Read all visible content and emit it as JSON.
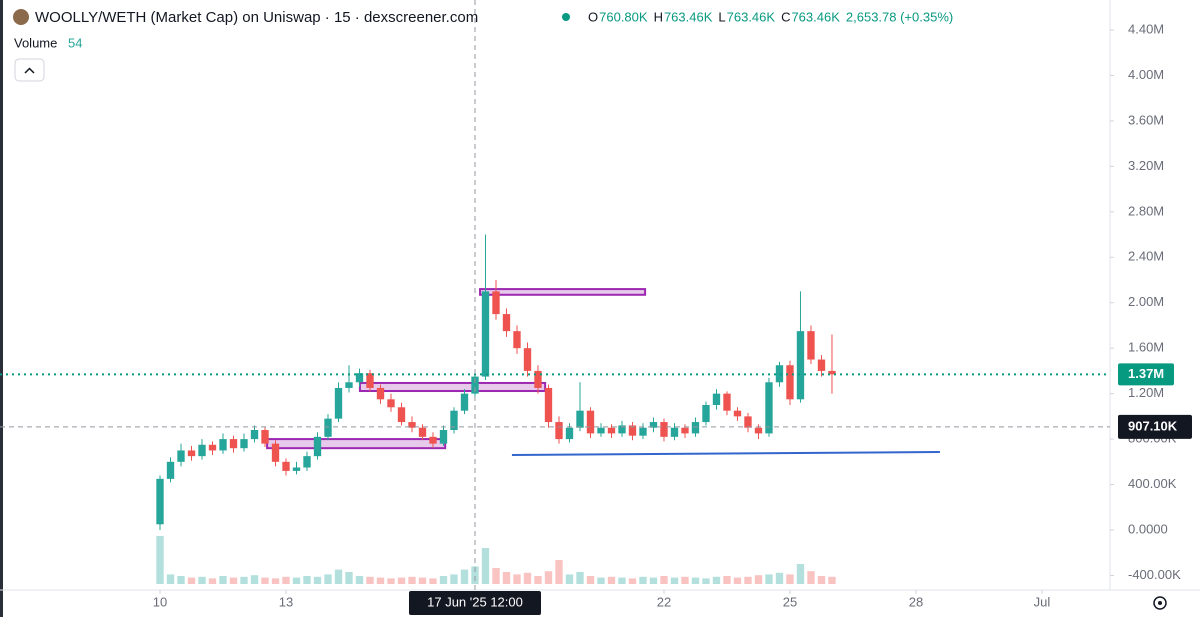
{
  "chart_data": {
    "type": "candlestick",
    "title": "WOOLLY/WETH (Market Cap) on Uniswap · 15 · dexscreener.com",
    "ohlc_header": [
      {
        "label": "O",
        "value": "760.80K"
      },
      {
        "label": "H",
        "value": "763.46K"
      },
      {
        "label": "L",
        "value": "763.46K"
      },
      {
        "label": "C",
        "value": "763.46K"
      }
    ],
    "change": "2,653.78 (+0.35%)",
    "volume_label": "Volume",
    "volume_value": "54",
    "up_color": "#26a69a",
    "down_color": "#ef5350",
    "x": [
      10,
      10.25,
      10.5,
      10.75,
      11,
      11.25,
      11.5,
      11.75,
      12,
      12.25,
      12.5,
      12.75,
      13,
      13.25,
      13.5,
      13.75,
      14,
      14.25,
      14.5,
      14.75,
      15,
      15.25,
      15.5,
      15.75,
      16,
      16.25,
      16.5,
      16.75,
      17,
      17.25,
      17.5,
      17.75,
      18,
      18.25,
      18.5,
      18.75,
      19,
      19.25,
      19.5,
      19.75,
      20,
      20.25,
      20.5,
      20.75,
      21,
      21.25,
      21.5,
      21.75,
      22,
      22.25,
      22.5,
      22.75,
      23,
      23.25,
      23.5,
      23.75,
      24,
      24.25,
      24.5,
      24.75,
      25,
      25.25,
      25.5,
      25.75,
      26
    ],
    "open": [
      50000,
      450000,
      600000,
      700000,
      650000,
      750000,
      700000,
      800000,
      720000,
      800000,
      880000,
      760000,
      600000,
      520000,
      550000,
      650000,
      820000,
      980000,
      1250000,
      1300000,
      1380000,
      1250000,
      1150000,
      1080000,
      950000,
      900000,
      820000,
      760000,
      880000,
      1050000,
      1200000,
      1350000,
      2100000,
      1900000,
      1750000,
      1600000,
      1400000,
      1250000,
      950000,
      800000,
      900000,
      1050000,
      850000,
      900000,
      850000,
      920000,
      830000,
      900000,
      950000,
      820000,
      900000,
      850000,
      950000,
      1100000,
      1200000,
      1050000,
      1000000,
      900000,
      850000,
      1300000,
      1450000,
      1150000,
      1750000,
      1500000,
      1400000
    ],
    "high": [
      480000,
      640000,
      760000,
      740000,
      800000,
      780000,
      850000,
      830000,
      850000,
      920000,
      910000,
      790000,
      630000,
      600000,
      690000,
      860000,
      1020000,
      1300000,
      1450000,
      1420000,
      1410000,
      1280000,
      1200000,
      1120000,
      1000000,
      930000,
      860000,
      920000,
      1080000,
      1240000,
      1400000,
      2600000,
      2200000,
      1950000,
      1800000,
      1650000,
      1450000,
      1280000,
      1000000,
      940000,
      1300000,
      1080000,
      940000,
      930000,
      960000,
      950000,
      940000,
      990000,
      980000,
      940000,
      930000,
      990000,
      1130000,
      1240000,
      1220000,
      1080000,
      1030000,
      930000,
      1340000,
      1480000,
      1490000,
      2100000,
      1800000,
      1540000,
      1720000
    ],
    "low": [
      0,
      420000,
      560000,
      610000,
      620000,
      660000,
      670000,
      680000,
      690000,
      770000,
      730000,
      560000,
      480000,
      490000,
      520000,
      620000,
      790000,
      950000,
      1210000,
      1260000,
      1220000,
      1110000,
      1040000,
      920000,
      860000,
      790000,
      720000,
      740000,
      850000,
      1020000,
      1170000,
      1320000,
      1850000,
      1700000,
      1550000,
      1350000,
      1200000,
      900000,
      760000,
      770000,
      870000,
      810000,
      820000,
      810000,
      820000,
      790000,
      800000,
      860000,
      780000,
      790000,
      810000,
      820000,
      920000,
      1060000,
      1010000,
      960000,
      860000,
      800000,
      820000,
      1260000,
      1100000,
      1120000,
      1460000,
      1350000,
      1200000
    ],
    "close": [
      450000,
      600000,
      700000,
      650000,
      750000,
      700000,
      800000,
      720000,
      800000,
      880000,
      760000,
      600000,
      520000,
      550000,
      650000,
      820000,
      980000,
      1250000,
      1300000,
      1380000,
      1250000,
      1150000,
      1080000,
      950000,
      900000,
      820000,
      760000,
      880000,
      1050000,
      1200000,
      1350000,
      2100000,
      1900000,
      1750000,
      1600000,
      1400000,
      1250000,
      950000,
      800000,
      900000,
      1050000,
      850000,
      900000,
      850000,
      920000,
      830000,
      900000,
      950000,
      820000,
      900000,
      850000,
      950000,
      1100000,
      1200000,
      1050000,
      1000000,
      900000,
      850000,
      1300000,
      1450000,
      1150000,
      1750000,
      1500000,
      1400000,
      1370000
    ],
    "volume": [
      60,
      12,
      10,
      8,
      9,
      7,
      10,
      8,
      9,
      11,
      8,
      7,
      9,
      8,
      10,
      9,
      12,
      18,
      15,
      10,
      9,
      8,
      7,
      8,
      9,
      8,
      7,
      10,
      12,
      18,
      22,
      45,
      20,
      15,
      12,
      14,
      10,
      16,
      30,
      12,
      15,
      10,
      8,
      9,
      8,
      7,
      9,
      8,
      10,
      8,
      9,
      8,
      7,
      9,
      10,
      8,
      9,
      11,
      12,
      14,
      12,
      25,
      16,
      10,
      9
    ],
    "vlim": [
      0,
      100
    ],
    "xlim": [
      6.19,
      32.62
    ],
    "ylim": [
      -528000,
      4664000
    ],
    "xticks": [
      10,
      13,
      22,
      25,
      28,
      {
        "value": 31,
        "label": "Jul"
      }
    ],
    "yticks": [
      {
        "value": 4400000,
        "label": "4.40M"
      },
      {
        "value": 4000000,
        "label": "4.00M"
      },
      {
        "value": 3600000,
        "label": "3.60M"
      },
      {
        "value": 3200000,
        "label": "3.20M"
      },
      {
        "value": 2800000,
        "label": "2.80M"
      },
      {
        "value": 2400000,
        "label": "2.40M"
      },
      {
        "value": 2000000,
        "label": "2.00M"
      },
      {
        "value": 1600000,
        "label": "1.60M"
      },
      {
        "value": 1200000,
        "label": "1.20M"
      },
      {
        "value": 800000,
        "label": "800.00K"
      },
      {
        "value": 400000,
        "label": "400.00K"
      },
      {
        "value": 0,
        "label": "0.0000"
      },
      {
        "value": -400000,
        "label": "-400.00K"
      }
    ],
    "last_price": {
      "value": 1370000,
      "label": "1.37M"
    },
    "crosshair": {
      "x": {
        "value": 17.5,
        "label": "17 Jun '25 12:00"
      },
      "y": {
        "value": 907100,
        "label": "907.10K"
      }
    },
    "zones": [
      {
        "x0": 17.62,
        "x1": 21.55,
        "y0": 2070000,
        "y1": 2120000
      },
      {
        "x0": 14.76,
        "x1": 19.17,
        "y0": 1223000,
        "y1": 1294000
      },
      {
        "x0": 12.55,
        "x1": 16.79,
        "y0": 720000,
        "y1": 800000
      }
    ],
    "trend_line": {
      "x0": 18.38,
      "y0": 660000,
      "x1": 28.57,
      "y1": 686000
    }
  }
}
